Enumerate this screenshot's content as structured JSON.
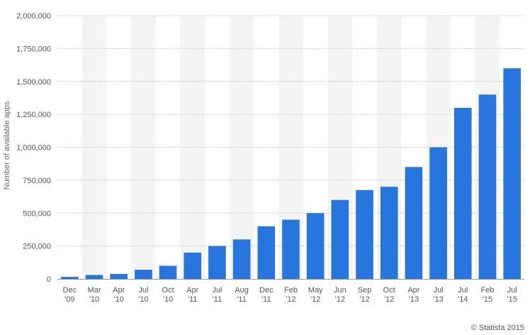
{
  "chart_data": {
    "type": "bar",
    "categories": [
      [
        "Dec",
        "'09"
      ],
      [
        "Mar",
        "'10"
      ],
      [
        "Apr",
        "'10"
      ],
      [
        "Jul",
        "'10"
      ],
      [
        "Oct",
        "'10"
      ],
      [
        "Apr",
        "'11"
      ],
      [
        "Jul",
        "'11"
      ],
      [
        "Aug",
        "'11"
      ],
      [
        "Dec",
        "'11"
      ],
      [
        "Feb",
        "'12"
      ],
      [
        "May",
        "'12"
      ],
      [
        "Jun",
        "'12"
      ],
      [
        "Sep",
        "'12"
      ],
      [
        "Oct",
        "'12"
      ],
      [
        "Apr",
        "'13"
      ],
      [
        "Jul",
        "'13"
      ],
      [
        "Jul",
        "'14"
      ],
      [
        "Feb",
        "'15"
      ],
      [
        "Jul",
        "'15"
      ]
    ],
    "values": [
      16000,
      30000,
      38000,
      70000,
      100000,
      200000,
      250000,
      300000,
      400000,
      450000,
      500000,
      600000,
      675000,
      700000,
      850000,
      1000000,
      1300000,
      1400000,
      1600000
    ],
    "ylabel": "Number of available apps",
    "ylim": [
      0,
      2000000
    ],
    "yticks": [
      0,
      250000,
      500000,
      750000,
      1000000,
      1250000,
      1500000,
      1750000,
      2000000
    ],
    "ytick_labels": [
      "0",
      "250,000",
      "500,000",
      "750,000",
      "1,000,000",
      "1,250,000",
      "1,500,000",
      "1,750,000",
      "2,000,000"
    ],
    "grid": true,
    "bar_color": "#2876dd",
    "band_color": "#f4f4f4"
  },
  "credit": "© Statista 2015"
}
